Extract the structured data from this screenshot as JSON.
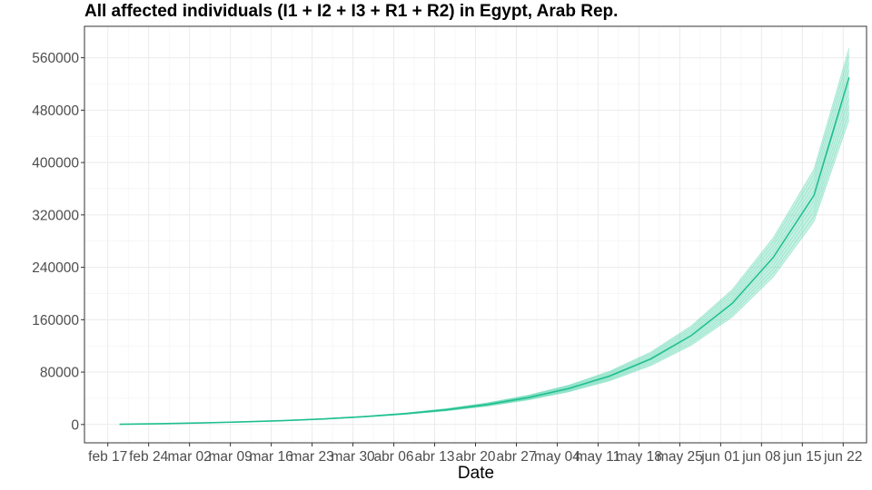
{
  "chart_data": {
    "type": "line",
    "title": "All affected individuals (I1 + I2 + I3 + R1 + R2) in  Egypt, Arab Rep.",
    "xlabel": "Date",
    "ylabel": "",
    "x_tick_labels": [
      "feb 17",
      "feb 24",
      "mar 02",
      "mar 09",
      "mar 16",
      "mar 23",
      "mar 30",
      "abr 06",
      "abr 13",
      "abr 20",
      "abr 27",
      "may 04",
      "may 11",
      "may 18",
      "may 25",
      "jun 01",
      "jun 08",
      "jun 15",
      "jun 22"
    ],
    "y_ticks": [
      0,
      80000,
      160000,
      240000,
      320000,
      400000,
      480000,
      560000
    ],
    "y_tick_labels": [
      "0",
      "80000",
      "160000",
      "240000",
      "320000",
      "400000",
      "480000",
      "560000"
    ],
    "xlim": [
      "2020-02-13",
      "2020-06-26"
    ],
    "ylim": [
      -28000,
      608000
    ],
    "grid": true,
    "legend": "none",
    "line_color": "#1fbf8f",
    "band_color": "#5fd6b0",
    "series": [
      {
        "x": [
          "2020-02-19",
          "2020-02-26",
          "2020-03-04",
          "2020-03-11",
          "2020-03-18",
          "2020-03-25",
          "2020-04-01",
          "2020-04-08",
          "2020-04-15",
          "2020-04-22",
          "2020-04-29",
          "2020-05-06",
          "2020-05-13",
          "2020-05-20",
          "2020-05-27",
          "2020-06-03",
          "2020-06-10",
          "2020-06-17",
          "2020-06-23"
        ],
        "median": [
          300,
          1200,
          2400,
          3900,
          5900,
          8500,
          12000,
          16500,
          22500,
          30500,
          41000,
          55000,
          74000,
          100000,
          136000,
          185000,
          255000,
          350000,
          530000
        ],
        "lower": [
          300,
          1200,
          2300,
          3700,
          5600,
          8000,
          11200,
          15300,
          20700,
          27900,
          37300,
          49800,
          66700,
          89600,
          121000,
          164000,
          225000,
          310000,
          465000
        ],
        "upper": [
          300,
          1200,
          2500,
          4100,
          6200,
          9000,
          12800,
          17700,
          24300,
          33100,
          44700,
          60200,
          81400,
          110400,
          151000,
          206000,
          285000,
          390000,
          575000
        ]
      }
    ]
  }
}
